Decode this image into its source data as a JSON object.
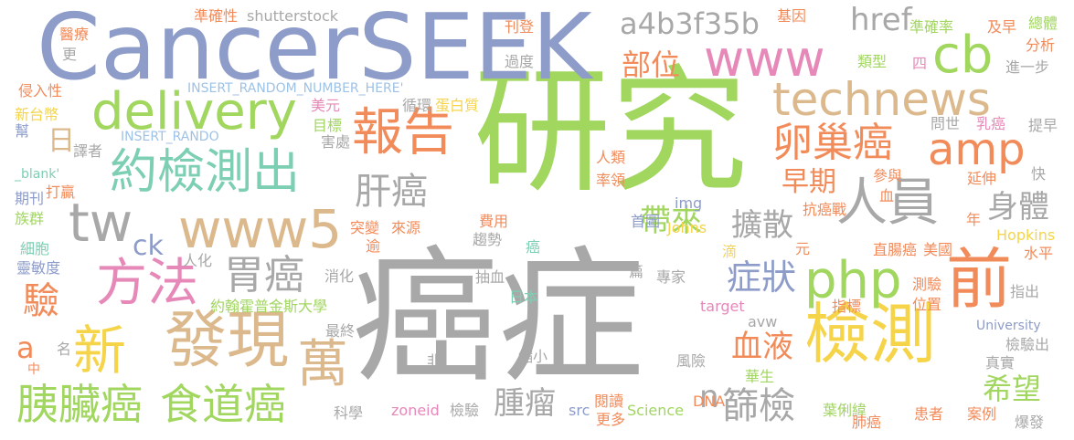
{
  "palette": {
    "background": "#ffffff",
    "green": "#a1d65f",
    "gray": "#a8a8a8",
    "blue_gray": "#8d9cc9",
    "tan": "#dcb98c",
    "orange": "#f28b5a",
    "pink": "#e689b9",
    "yellow": "#f5d44a",
    "teal": "#7ccfb3",
    "light_blue": "#9ec2e6",
    "light_gray": "#bdbdbd"
  },
  "words": {
    "w1": "癌症",
    "w2": "研究",
    "w3": "CancerSEEK",
    "w4": "檢測",
    "w5": "technews",
    "w6": "delivery",
    "w7": "www",
    "w8": "www5",
    "w9": "php",
    "w10": "發現",
    "w11": "胰臟癌",
    "w12": "食道癌",
    "w13": "報告",
    "w14": "約檢測出",
    "w15": "卵巢癌",
    "w16": "amp",
    "w17": "前",
    "w18": "人員",
    "w19": "cb",
    "w20": "方法",
    "w21": "胃癌",
    "w22": "新",
    "w23": "萬",
    "w24": "tw",
    "w25": "a4b3f35b",
    "w26": "肝癌",
    "w27": "症狀",
    "w28": "篩檢",
    "w29": "血液",
    "w30": "身體",
    "w31": "擴散",
    "w32": "帶來",
    "w33": "早期",
    "w34": "部位",
    "w35": "href",
    "w36": "希望",
    "w37": "腫瘤",
    "w38": "驗",
    "w39": "ck",
    "w40": "日",
    "w41": "a",
    "w42": "n",
    "w43": "準確性",
    "w44": "shutterstock",
    "w45": "刊登",
    "w46": "基因",
    "w47": "準確率",
    "w48": "及早",
    "w49": "總體",
    "w50": "醫療",
    "w51": "更",
    "w52": "侵入性",
    "w53": "INSERT_RANDOM_NUMBER_HERE'",
    "w54": "循環",
    "w55": "蛋白質",
    "w56": "美元",
    "w57": "目標",
    "w58": "INSERT_RANDO",
    "w59": "新台幣",
    "w60": "幫",
    "w61": "譯者",
    "w62": "_blank'",
    "w63": "期刊",
    "w64": "打贏",
    "w65": "族群",
    "w66": "細胞",
    "w67": "靈敏度",
    "w68": "人類",
    "w69": "率領",
    "w70": "img",
    "w71": "首圖",
    "w72": "Johns",
    "w73": "突變",
    "w74": "來源",
    "w75": "費用",
    "w76": "趨勢",
    "w77": "癌",
    "w78": "元",
    "w79": "滴",
    "w80": "人化",
    "w81": "消化",
    "w82": "約翰霍普金斯大學",
    "w83": "抽血",
    "w84": "日本",
    "w85": "篇",
    "w86": "專家",
    "w87": "target",
    "w88": "avw",
    "w89": "最終",
    "w90": "名",
    "w91": "中",
    "w92": "非",
    "w93": "縮小",
    "w94": "風險",
    "w95": "zoneid",
    "w96": "檢驗",
    "w97": "閱讀",
    "w98": "src",
    "w99": "更多",
    "w100": "Science",
    "w101": "DNA",
    "w102": "華生",
    "w103": "葉俐緯",
    "w104": "肺癌",
    "w105": "患者",
    "w106": "案例",
    "w107": "爆發",
    "w108": "科學",
    "w109": "害處",
    "w110": "過度",
    "w111": "分析",
    "w112": "進一步",
    "w113": "問世",
    "w114": "乳癌",
    "w115": "提早",
    "w116": "類型",
    "w117": "四",
    "w118": "參與",
    "w119": "延伸",
    "w120": "快",
    "w121": "抗癌戰",
    "w122": "血",
    "w123": "年",
    "w124": "Hopkins",
    "w125": "直腸癌",
    "w126": "美國",
    "w127": "水平",
    "w128": "測驗",
    "w129": "位置",
    "w130": "指標",
    "w131": "指出",
    "w132": "University",
    "w133": "檢驗出",
    "w134": "真實",
    "w135": "逾"
  }
}
